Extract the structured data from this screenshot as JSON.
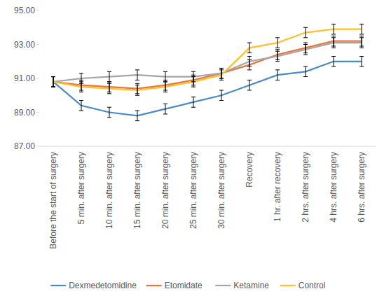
{
  "chart_data": {
    "type": "line",
    "categories": [
      "Before the start of surgery",
      "5 min. after surgery",
      "10 min. after surgery",
      "15 min. after surgery",
      "20 min. after surgery",
      "25 min. after surgery",
      "30 min. after surgery",
      "Recovery",
      "1 hr. after recovery",
      "2 hrs. after surgery",
      "4 hrs. after surgery",
      "6 hrs. after surgery"
    ],
    "series": [
      {
        "name": "Dexmedetomidine",
        "color": "#4a8ac6",
        "values": [
          90.8,
          89.4,
          89.0,
          88.8,
          89.2,
          89.6,
          90.0,
          90.6,
          91.2,
          91.4,
          92.0,
          92.0
        ],
        "errors": [
          0.3,
          0.3,
          0.3,
          0.3,
          0.3,
          0.3,
          0.3,
          0.3,
          0.3,
          0.3,
          0.3,
          0.3
        ]
      },
      {
        "name": "Etomidate",
        "color": "#e8763a",
        "values": [
          90.8,
          90.6,
          90.5,
          90.4,
          90.6,
          90.9,
          91.3,
          91.8,
          92.4,
          92.8,
          93.2,
          93.2
        ],
        "errors": [
          0.3,
          0.3,
          0.3,
          0.3,
          0.3,
          0.3,
          0.3,
          0.3,
          0.3,
          0.3,
          0.3,
          0.3
        ]
      },
      {
        "name": "Ketamine",
        "color": "#a5a5a5",
        "values": [
          90.8,
          91.0,
          91.1,
          91.2,
          91.1,
          91.1,
          91.3,
          92.0,
          92.3,
          92.7,
          93.1,
          93.1
        ],
        "errors": [
          0.3,
          0.3,
          0.3,
          0.3,
          0.3,
          0.3,
          0.3,
          0.3,
          0.3,
          0.3,
          0.3,
          0.3
        ]
      },
      {
        "name": "Control",
        "color": "#fdc02f",
        "values": [
          90.8,
          90.5,
          90.4,
          90.3,
          90.5,
          90.8,
          91.2,
          92.8,
          93.1,
          93.7,
          93.9,
          93.9
        ],
        "errors": [
          0.3,
          0.3,
          0.3,
          0.3,
          0.3,
          0.3,
          0.3,
          0.3,
          0.3,
          0.3,
          0.3,
          0.3
        ]
      }
    ],
    "ylim": [
      87,
      95
    ],
    "yticks": [
      {
        "value": 87,
        "label": "87.00"
      },
      {
        "value": 89,
        "label": "89.00"
      },
      {
        "value": 91,
        "label": "91.00"
      },
      {
        "value": 93,
        "label": "93.00"
      },
      {
        "value": 95,
        "label": "95.00"
      }
    ],
    "grid": false,
    "legend": "bottom",
    "marker": "none",
    "line_style": "solid"
  }
}
